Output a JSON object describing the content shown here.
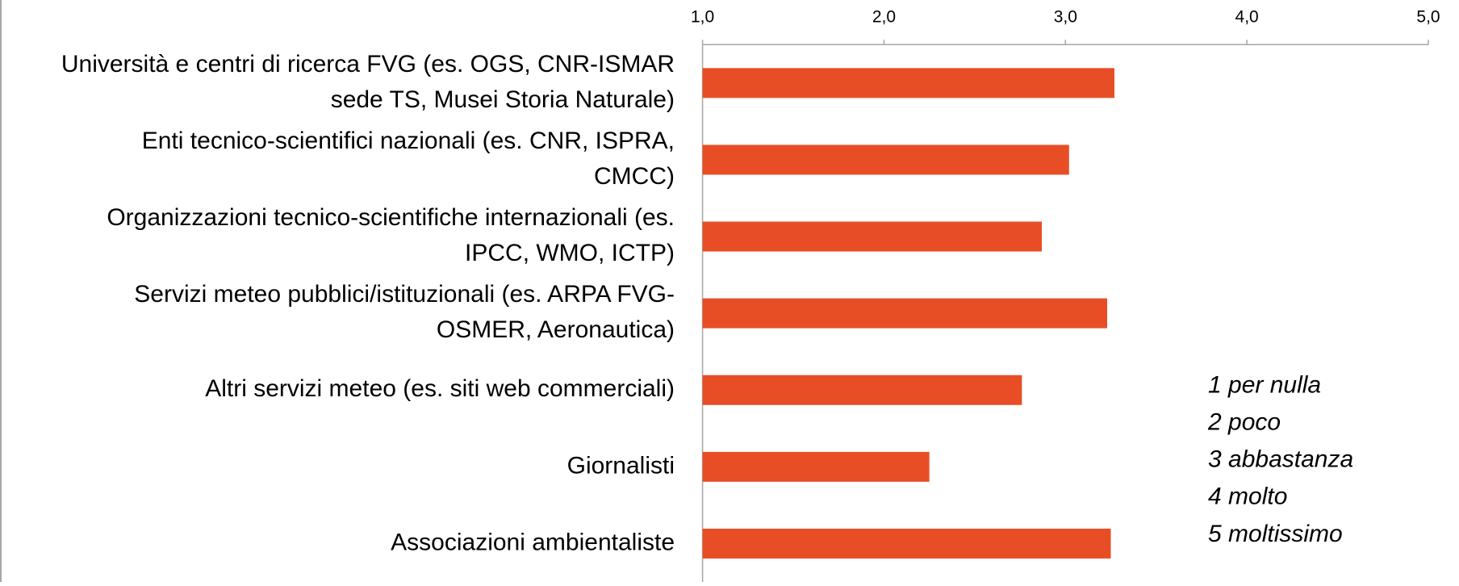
{
  "chart_data": {
    "type": "barh",
    "categories": [
      [
        "Università e centri di ricerca FVG (es. OGS, CNR-ISMAR",
        "sede TS, Musei Storia Naturale)"
      ],
      [
        "Enti tecnico-scientifici nazionali (es. CNR, ISPRA,",
        "CMCC)"
      ],
      [
        "Organizzazioni tecnico-scientifiche internazionali (es.",
        "IPCC, WMO, ICTP)"
      ],
      [
        "Servizi meteo pubblici/istituzionali (es. ARPA FVG-",
        "OSMER, Aeronautica)"
      ],
      [
        "Altri servizi meteo (es. siti web commerciali)"
      ],
      [
        "Giornalisti"
      ],
      [
        "Associazioni ambientaliste"
      ]
    ],
    "values": [
      3.27,
      3.02,
      2.87,
      3.23,
      2.76,
      2.25,
      3.25
    ],
    "color": "#e84e26",
    "xlim": [
      1,
      5
    ],
    "xticks": [
      {
        "value": 1,
        "label": "1,0"
      },
      {
        "value": 2,
        "label": "2,0"
      },
      {
        "value": 3,
        "label": "3,0"
      },
      {
        "value": 4,
        "label": "4,0"
      },
      {
        "value": 5,
        "label": "5,0"
      }
    ],
    "annotations": [
      "1 per nulla",
      "2 poco",
      "3 abbastanza",
      "4 molto",
      "5 moltissimo"
    ]
  }
}
